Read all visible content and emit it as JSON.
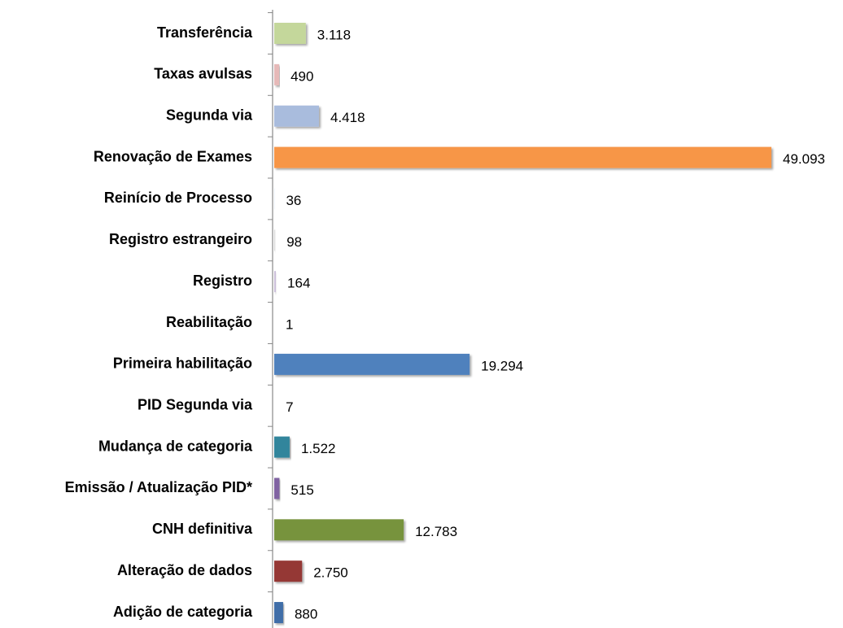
{
  "chart_data": {
    "type": "barh",
    "categories": [
      "Transferência",
      "Taxas avulsas",
      "Segunda via",
      "Renovação de Exames",
      "Reinício de Processo",
      "Registro estrangeiro",
      "Registro",
      "Reabilitação",
      "Primeira habilitação",
      "PID Segunda via",
      "Mudança de categoria",
      "Emissão / Atualização PID*",
      "CNH definitiva",
      "Alteração de dados",
      "Adição de categoria"
    ],
    "values": [
      3118,
      490,
      4418,
      49093,
      36,
      98,
      164,
      1,
      19294,
      7,
      1522,
      515,
      12783,
      2750,
      880
    ],
    "value_labels": [
      "3.118",
      "490",
      "4.418",
      "49.093",
      "36",
      "98",
      "164",
      "1",
      "19.294",
      "7",
      "1.522",
      "515",
      "12.783",
      "2.750",
      "880"
    ],
    "colors": [
      "#c4d79b",
      "#e6b9b8",
      "#a9bcdd",
      "#f79646",
      "#dce6f2",
      "#d9d9d9",
      "#ccc0da",
      "#f2dcdb",
      "#4f81bd",
      "#dbeef4",
      "#31859c",
      "#8064a2",
      "#77933c",
      "#953735",
      "#3f6ea8"
    ]
  }
}
